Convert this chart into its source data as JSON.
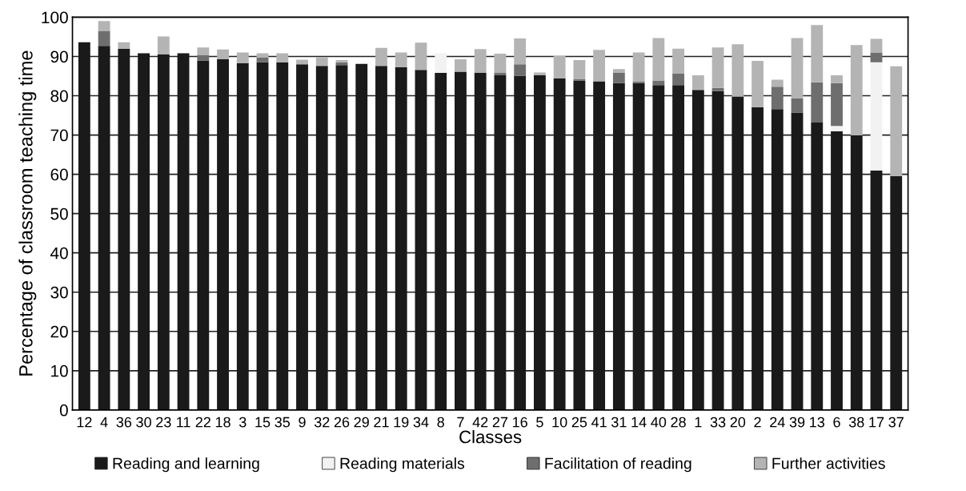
{
  "chart_data": {
    "type": "bar",
    "stacked": true,
    "xlabel": "Classes",
    "ylabel": "Percentage of classroom teaching time",
    "categories": [
      "12",
      "4",
      "36",
      "30",
      "23",
      "11",
      "22",
      "18",
      "3",
      "15",
      "35",
      "9",
      "32",
      "26",
      "29",
      "21",
      "19",
      "34",
      "8",
      "7",
      "42",
      "27",
      "16",
      "5",
      "10",
      "25",
      "41",
      "31",
      "14",
      "40",
      "28",
      "1",
      "33",
      "20",
      "2",
      "24",
      "39",
      "13",
      "6",
      "38",
      "17",
      "37"
    ],
    "series": [
      {
        "name": "Reading and learning",
        "color": "#1a1a1a",
        "values": [
          93.6,
          92.7,
          92,
          90.8,
          90.5,
          90.8,
          89,
          89.3,
          88.3,
          88.5,
          88.5,
          88,
          87.6,
          87.8,
          88.1,
          87.6,
          87.3,
          86.6,
          85.8,
          86.1,
          85.8,
          85.2,
          85.1,
          85.2,
          84.4,
          83.9,
          83.7,
          83.2,
          83.2,
          82.7,
          82.7,
          81.5,
          81.2,
          79.8,
          77.1,
          76.6,
          75.7,
          73.2,
          71,
          69.9,
          61,
          59.5
        ]
      },
      {
        "name": "Reading materials",
        "color": "#f2f2f2",
        "values": [
          0,
          0,
          0,
          0,
          0,
          0,
          0,
          0,
          0,
          0,
          0,
          0,
          0,
          0,
          0,
          0,
          0,
          0,
          5,
          0,
          0,
          0,
          0,
          0,
          0,
          0,
          0,
          0,
          0,
          0,
          0,
          0,
          0,
          0,
          0,
          0,
          0,
          0,
          1.3,
          0,
          27.5,
          0
        ]
      },
      {
        "name": "Facilitation of reading",
        "color": "#6e6e6e",
        "values": [
          0,
          3.8,
          0,
          0,
          0,
          0,
          1.3,
          0,
          0,
          1.2,
          0,
          0,
          0,
          0.7,
          0,
          0,
          0,
          0,
          0,
          0,
          0,
          0.7,
          2.9,
          0,
          0,
          0.3,
          0,
          2.6,
          0.5,
          1.2,
          2.9,
          0,
          0.8,
          0,
          0,
          5.7,
          3.6,
          10.2,
          10.9,
          0,
          2.5,
          0
        ]
      },
      {
        "name": "Further activities",
        "color": "#b4b4b4",
        "values": [
          0,
          2.5,
          1.6,
          0,
          4.6,
          0,
          2,
          2.5,
          2.7,
          1.1,
          2.3,
          1.2,
          2.2,
          0.6,
          0,
          4.6,
          3.7,
          6.9,
          0,
          3.2,
          6.1,
          4.8,
          6.6,
          0.7,
          5.7,
          4.9,
          8,
          1,
          7.3,
          10.8,
          6.4,
          3.7,
          10.3,
          13.3,
          11.8,
          1.8,
          15.4,
          14.6,
          2,
          23,
          3.5,
          28
        ]
      }
    ],
    "ylim": [
      0,
      100
    ],
    "yticks": [
      0,
      10,
      20,
      30,
      40,
      50,
      60,
      70,
      80,
      90,
      100
    ],
    "grid": "y",
    "legend": "bottom"
  }
}
